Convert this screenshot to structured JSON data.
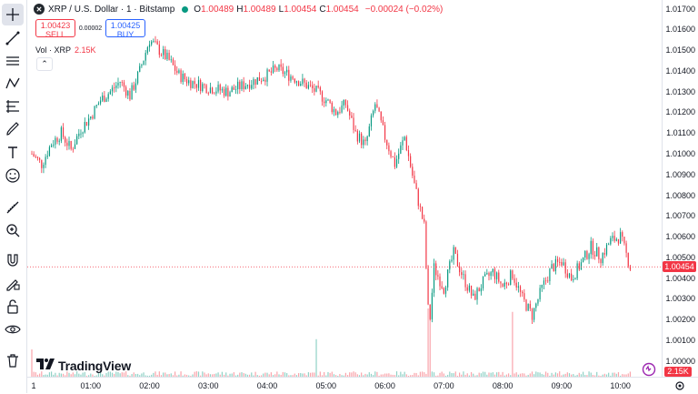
{
  "legend": {
    "symbol_icon": "xrp-logo",
    "symbol": "XRP / U.S. Dollar · 1 · Bitstamp",
    "status_color": "#089981",
    "ohlc": [
      {
        "label": "O",
        "value": "1.00489"
      },
      {
        "label": "H",
        "value": "1.00489"
      },
      {
        "label": "L",
        "value": "1.00454"
      },
      {
        "label": "C",
        "value": "1.00454"
      }
    ],
    "change": "−0.00024 (−0.02%)"
  },
  "trade": {
    "sell_price": "1.00423",
    "sell_label": "SELL",
    "spread": "0.00002",
    "buy_price": "1.00425",
    "buy_label": "BUY"
  },
  "volume_legend": {
    "label": "Vol · XRP",
    "value": "2.15K"
  },
  "price_scale": [
    "1.01700",
    "1.01600",
    "1.01500",
    "1.01400",
    "1.01300",
    "1.01200",
    "1.01100",
    "1.01000",
    "1.00900",
    "1.00800",
    "1.00700",
    "1.00600",
    "1.00500",
    "1.00400",
    "1.00300",
    "1.00200",
    "1.00100",
    "1.00000"
  ],
  "last_price": "1.00454",
  "volume_badge": "2.15K",
  "time_scale": [
    "1",
    "01:00",
    "02:00",
    "03:00",
    "04:00",
    "05:00",
    "06:00",
    "07:00",
    "08:00",
    "09:00",
    "10:00"
  ],
  "brand": "TradingView",
  "colors": {
    "up": "#089981",
    "down": "#f23645",
    "accent": "#2962ff"
  },
  "toolbar": [
    "crosshair-icon",
    "trend-line-icon",
    "horizontal-lines-icon",
    "pattern-icon",
    "fib-icon",
    "brush-icon",
    "text-icon",
    "emoji-icon",
    "ruler-icon",
    "zoom-in-icon",
    "magnet-icon",
    "lock-drawing-icon",
    "lock-icon",
    "eye-icon",
    "trash-icon"
  ],
  "chart_data": {
    "type": "candlestick",
    "instrument": "XRP / U.S. Dollar",
    "interval": "1",
    "exchange": "Bitstamp",
    "ylim": [
      0.99985,
      1.01725
    ],
    "x_ticks": [
      "1",
      "01:00",
      "02:00",
      "03:00",
      "04:00",
      "05:00",
      "06:00",
      "07:00",
      "08:00",
      "09:00",
      "10:00"
    ],
    "price_path": [
      [
        "00:00",
        1.01
      ],
      [
        "00:10",
        1.0095
      ],
      [
        "00:20",
        1.0105
      ],
      [
        "00:30",
        1.011
      ],
      [
        "00:40",
        1.0102
      ],
      [
        "00:50",
        1.0112
      ],
      [
        "01:00",
        1.0118
      ],
      [
        "01:10",
        1.0126
      ],
      [
        "01:20",
        1.013
      ],
      [
        "01:30",
        1.0135
      ],
      [
        "01:40",
        1.0128
      ],
      [
        "01:50",
        1.014
      ],
      [
        "02:00",
        1.0155
      ],
      [
        "02:10",
        1.015
      ],
      [
        "02:20",
        1.0145
      ],
      [
        "02:30",
        1.0138
      ],
      [
        "02:40",
        1.0135
      ],
      [
        "03:00",
        1.0132
      ],
      [
        "03:20",
        1.013
      ],
      [
        "03:40",
        1.0134
      ],
      [
        "04:00",
        1.0138
      ],
      [
        "04:10",
        1.0141
      ],
      [
        "04:30",
        1.0136
      ],
      [
        "04:50",
        1.013
      ],
      [
        "05:00",
        1.0126
      ],
      [
        "05:10",
        1.012
      ],
      [
        "05:20",
        1.0124
      ],
      [
        "05:30",
        1.011
      ],
      [
        "05:40",
        1.0104
      ],
      [
        "05:50",
        1.0124
      ],
      [
        "06:00",
        1.0108
      ],
      [
        "06:10",
        1.0095
      ],
      [
        "06:20",
        1.0108
      ],
      [
        "06:30",
        1.0085
      ],
      [
        "06:40",
        1.0065
      ],
      [
        "06:45",
        1.0015
      ],
      [
        "06:50",
        1.0045
      ],
      [
        "07:00",
        1.0035
      ],
      [
        "07:10",
        1.0052
      ],
      [
        "07:20",
        1.004
      ],
      [
        "07:30",
        1.003
      ],
      [
        "07:40",
        1.0038
      ],
      [
        "07:50",
        1.0043
      ],
      [
        "08:00",
        1.0036
      ],
      [
        "08:10",
        1.0042
      ],
      [
        "08:20",
        1.003
      ],
      [
        "08:30",
        1.0022
      ],
      [
        "08:40",
        1.0035
      ],
      [
        "08:50",
        1.0045
      ],
      [
        "09:00",
        1.0048
      ],
      [
        "09:10",
        1.004
      ],
      [
        "09:20",
        1.0047
      ],
      [
        "09:30",
        1.0055
      ],
      [
        "09:40",
        1.005
      ],
      [
        "09:50",
        1.0058
      ],
      [
        "10:00",
        1.006
      ],
      [
        "10:10",
        1.00454
      ]
    ],
    "volume_spikes": [
      [
        "06:45",
        1.0
      ],
      [
        "08:10",
        0.95
      ],
      [
        "04:50",
        0.55
      ],
      [
        "00:00",
        0.4
      ]
    ],
    "last_price": 1.00454,
    "grid": false
  }
}
